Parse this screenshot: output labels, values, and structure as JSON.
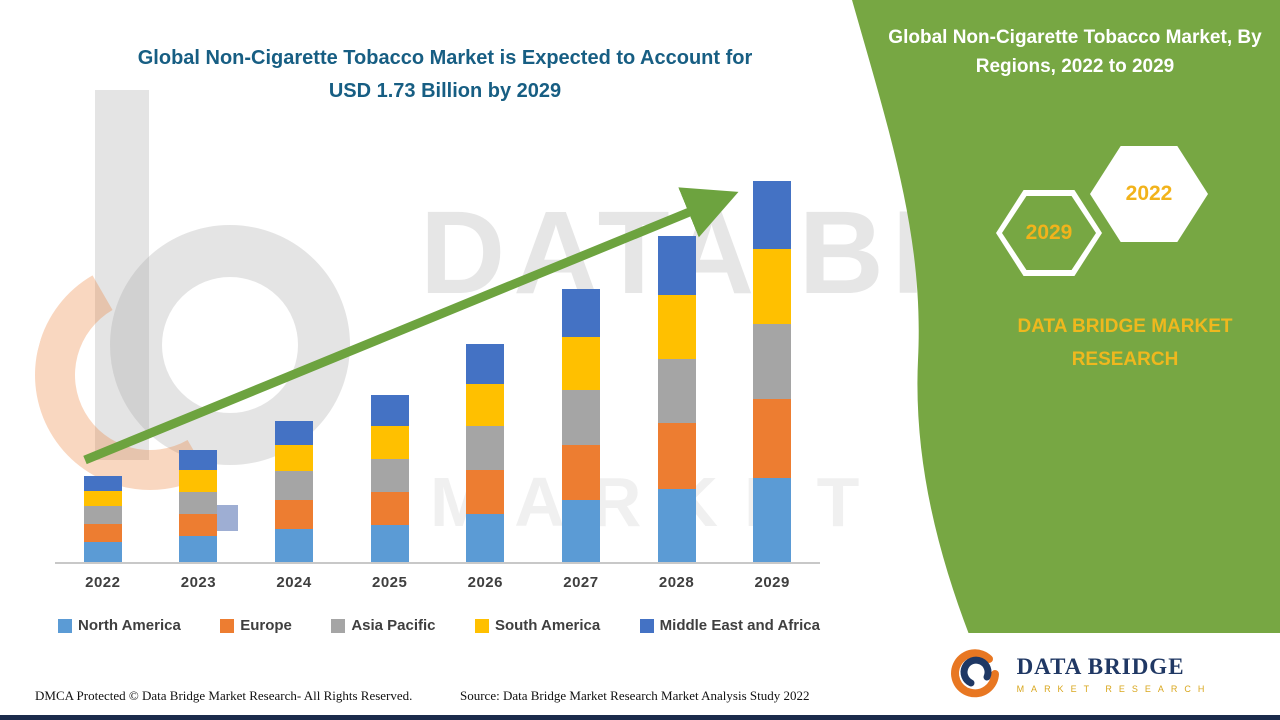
{
  "title": {
    "line1": "Global Non-Cigarette Tobacco Market is Expected to Account for",
    "line2": "USD 1.73 Billion by 2029"
  },
  "side_panel": {
    "heading": "Global Non-Cigarette Tobacco Market, By Regions, 2022 to 2029",
    "hexagons": [
      {
        "year": "2029"
      },
      {
        "year": "2022"
      }
    ],
    "brand_line1": "DATA BRIDGE MARKET",
    "brand_line2": "RESEARCH",
    "colors": {
      "panel_green": "#77a743",
      "accent_gold": "#f2b31b"
    }
  },
  "chart_data": {
    "type": "bar",
    "stacked": true,
    "title": "Global Non-Cigarette Tobacco Market, By Regions, 2022 to 2029",
    "unit": "USD Billion",
    "categories": [
      "2022",
      "2023",
      "2024",
      "2025",
      "2026",
      "2027",
      "2028",
      "2029"
    ],
    "series": [
      {
        "name": "North America",
        "color": "#5b9bd5",
        "values": [
          0.09,
          0.12,
          0.15,
          0.17,
          0.22,
          0.28,
          0.33,
          0.38
        ]
      },
      {
        "name": "Europe",
        "color": "#ed7d31",
        "values": [
          0.08,
          0.1,
          0.13,
          0.15,
          0.2,
          0.25,
          0.3,
          0.36
        ]
      },
      {
        "name": "Asia Pacific",
        "color": "#a5a5a5",
        "values": [
          0.08,
          0.1,
          0.13,
          0.15,
          0.2,
          0.25,
          0.29,
          0.34
        ]
      },
      {
        "name": "South America",
        "color": "#ffc000",
        "values": [
          0.07,
          0.1,
          0.12,
          0.15,
          0.19,
          0.24,
          0.29,
          0.34
        ]
      },
      {
        "name": "Middle East and Africa",
        "color": "#4472c4",
        "values": [
          0.07,
          0.09,
          0.11,
          0.14,
          0.18,
          0.22,
          0.27,
          0.31
        ]
      }
    ],
    "totals_by_year": [
      0.39,
      0.51,
      0.64,
      0.76,
      0.99,
      1.24,
      1.48,
      1.73
    ],
    "ylim": [
      0,
      1.8
    ],
    "grid": false,
    "legend_position": "bottom",
    "trend_arrow": true,
    "trend_arrow_color": "#6da33f"
  },
  "watermark": {
    "line1": "DATA BRIDGE",
    "line2": "MARKET RESEARCH"
  },
  "logo": {
    "name": "DATA BRIDGE",
    "subtitle": "MARKET RESEARCH"
  },
  "footer": {
    "left": "DMCA Protected © Data Bridge Market Research- All Rights Reserved.",
    "source": "Source: Data Bridge Market Research Market Analysis Study 2022"
  }
}
